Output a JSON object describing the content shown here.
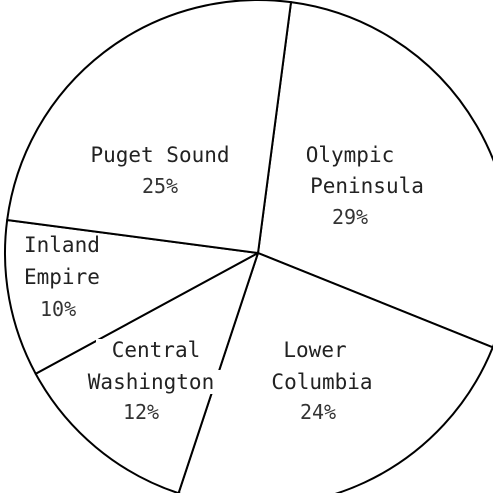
{
  "chart_data": {
    "type": "pie",
    "title": "",
    "slices": [
      {
        "label_lines": [
          "Olympic",
          "Peninsula"
        ],
        "value": 29,
        "value_label": "29%"
      },
      {
        "label_lines": [
          "Lower",
          "Columbia"
        ],
        "value": 24,
        "value_label": "24%"
      },
      {
        "label_lines": [
          "Central",
          "Washington"
        ],
        "value": 12,
        "value_label": "12%"
      },
      {
        "label_lines": [
          "Inland",
          "Empire"
        ],
        "value": 10,
        "value_label": "10%"
      },
      {
        "label_lines": [
          "Puget Sound"
        ],
        "value": 25,
        "value_label": "25%"
      }
    ],
    "start_angle_deg": 7.5,
    "direction": "clockwise",
    "legend": "none",
    "colors": {
      "fill": "#ffffff",
      "stroke": "#000000"
    }
  }
}
